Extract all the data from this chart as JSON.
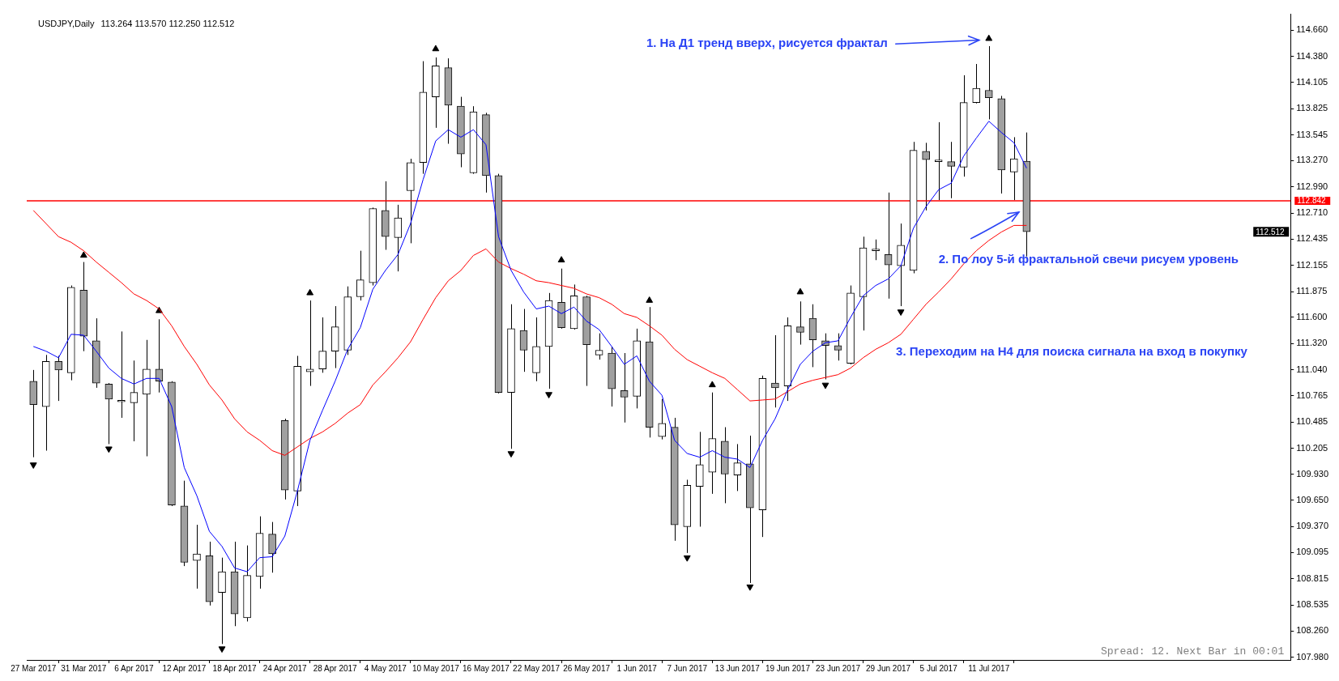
{
  "chart_data": {
    "type": "candlestick",
    "title": "USDJPY,Daily",
    "subtitle": "113.264 113.570 112.250 112.512",
    "categories": [
      "27 Mar 2017",
      null,
      null,
      null,
      "31 Mar 2017",
      null,
      null,
      null,
      "6 Apr 2017",
      null,
      null,
      null,
      "12 Apr 2017",
      null,
      null,
      null,
      "18 Apr 2017",
      null,
      null,
      null,
      "24 Apr 2017",
      null,
      null,
      null,
      "28 Apr 2017",
      null,
      null,
      null,
      "4 May 2017",
      null,
      null,
      null,
      "10 May 2017",
      null,
      null,
      null,
      "16 May 2017",
      null,
      null,
      null,
      "22 May 2017",
      null,
      null,
      null,
      "26 May 2017",
      null,
      null,
      null,
      "1 Jun 2017",
      null,
      null,
      null,
      "7 Jun 2017",
      null,
      null,
      null,
      "13 Jun 2017",
      null,
      null,
      null,
      "19 Jun 2017",
      null,
      null,
      null,
      "23 Jun 2017",
      null,
      null,
      null,
      "29 Jun 2017",
      null,
      null,
      null,
      "5 Jul 2017",
      null,
      null,
      null,
      "11 Jul 2017",
      null,
      null,
      null
    ],
    "ohlc": [
      [
        110.92,
        111.04,
        110.11,
        110.67
      ],
      [
        110.65,
        111.2,
        110.18,
        111.13
      ],
      [
        111.13,
        111.19,
        110.71,
        111.04
      ],
      [
        111.01,
        111.94,
        110.93,
        111.92
      ],
      [
        111.89,
        112.19,
        111.24,
        111.4
      ],
      [
        111.35,
        111.59,
        110.85,
        110.9
      ],
      [
        110.89,
        110.9,
        110.25,
        110.73
      ],
      [
        110.7,
        111.45,
        110.53,
        110.71
      ],
      [
        110.69,
        111.14,
        110.28,
        110.8
      ],
      [
        110.78,
        111.36,
        110.12,
        111.05
      ],
      [
        111.05,
        111.58,
        110.8,
        110.92
      ],
      [
        110.91,
        110.92,
        109.59,
        109.6
      ],
      [
        109.59,
        109.86,
        108.95,
        108.99
      ],
      [
        109.01,
        109.39,
        108.71,
        109.08
      ],
      [
        109.06,
        109.21,
        108.53,
        108.57
      ],
      [
        108.67,
        109.04,
        108.12,
        108.89
      ],
      [
        108.89,
        109.21,
        108.31,
        108.44
      ],
      [
        108.4,
        109.17,
        108.36,
        108.85
      ],
      [
        108.84,
        109.48,
        108.71,
        109.3
      ],
      [
        109.29,
        109.42,
        108.88,
        109.08
      ],
      [
        110.5,
        110.52,
        109.66,
        109.76
      ],
      [
        109.75,
        111.19,
        109.59,
        111.08
      ],
      [
        111.02,
        111.78,
        110.87,
        111.05
      ],
      [
        111.05,
        111.6,
        111.01,
        111.24
      ],
      [
        111.24,
        111.72,
        111.06,
        111.5
      ],
      [
        111.25,
        111.93,
        111.2,
        111.82
      ],
      [
        111.82,
        112.31,
        111.78,
        112.0
      ],
      [
        111.97,
        112.77,
        111.94,
        112.76
      ],
      [
        112.74,
        113.05,
        112.32,
        112.46
      ],
      [
        112.45,
        112.8,
        112.09,
        112.66
      ],
      [
        112.95,
        113.29,
        112.39,
        113.25
      ],
      [
        113.25,
        114.33,
        113.13,
        114.0
      ],
      [
        113.95,
        114.37,
        113.62,
        114.28
      ],
      [
        114.26,
        114.36,
        113.45,
        113.86
      ],
      [
        113.85,
        113.95,
        113.2,
        113.34
      ],
      [
        113.14,
        113.85,
        113.13,
        113.79
      ],
      [
        113.76,
        113.78,
        112.93,
        113.11
      ],
      [
        113.11,
        113.13,
        110.79,
        110.8
      ],
      [
        110.8,
        111.74,
        110.2,
        111.48
      ],
      [
        111.46,
        111.69,
        111.02,
        111.25
      ],
      [
        111.01,
        111.6,
        110.92,
        111.29
      ],
      [
        111.29,
        111.86,
        110.84,
        111.78
      ],
      [
        111.76,
        112.12,
        111.48,
        111.49
      ],
      [
        111.48,
        111.95,
        111.47,
        111.83
      ],
      [
        111.82,
        111.83,
        110.87,
        111.31
      ],
      [
        111.2,
        111.43,
        111.15,
        111.25
      ],
      [
        111.22,
        111.29,
        110.65,
        110.84
      ],
      [
        110.82,
        111.22,
        110.48,
        110.75
      ],
      [
        110.76,
        111.48,
        110.63,
        111.35
      ],
      [
        111.34,
        111.71,
        110.32,
        110.43
      ],
      [
        110.33,
        110.73,
        110.3,
        110.47
      ],
      [
        110.43,
        110.53,
        109.22,
        109.39
      ],
      [
        109.37,
        109.87,
        109.09,
        109.81
      ],
      [
        109.8,
        110.38,
        109.37,
        110.03
      ],
      [
        109.95,
        110.8,
        109.72,
        110.31
      ],
      [
        110.28,
        110.43,
        109.62,
        109.93
      ],
      [
        109.92,
        110.25,
        109.75,
        110.05
      ],
      [
        110.04,
        110.34,
        108.77,
        109.57
      ],
      [
        109.55,
        110.98,
        109.26,
        110.95
      ],
      [
        110.9,
        111.41,
        110.64,
        110.85
      ],
      [
        110.87,
        111.6,
        110.71,
        111.51
      ],
      [
        111.5,
        111.77,
        111.31,
        111.44
      ],
      [
        111.59,
        111.74,
        111.07,
        111.36
      ],
      [
        111.35,
        111.43,
        110.94,
        111.3
      ],
      [
        111.3,
        111.43,
        111.14,
        111.25
      ],
      [
        111.11,
        111.94,
        111.1,
        111.86
      ],
      [
        111.82,
        112.46,
        111.46,
        112.34
      ],
      [
        112.31,
        112.43,
        112.21,
        112.32
      ],
      [
        112.27,
        112.93,
        111.8,
        112.16
      ],
      [
        112.15,
        112.6,
        111.72,
        112.37
      ],
      [
        112.1,
        113.47,
        112.07,
        113.38
      ],
      [
        113.37,
        113.46,
        112.74,
        113.28
      ],
      [
        113.26,
        113.68,
        112.85,
        113.27
      ],
      [
        113.26,
        113.47,
        112.87,
        113.21
      ],
      [
        113.2,
        114.18,
        113.1,
        113.89
      ],
      [
        113.89,
        114.3,
        113.88,
        114.04
      ],
      [
        114.02,
        114.49,
        113.71,
        113.94
      ],
      [
        113.93,
        113.96,
        112.92,
        113.17
      ],
      [
        113.15,
        113.52,
        112.85,
        113.29
      ],
      [
        113.264,
        113.57,
        112.25,
        112.512
      ]
    ],
    "series": [
      {
        "type": "line",
        "color": "#0000ff",
        "values": [
          111.29,
          111.24,
          111.17,
          111.42,
          111.41,
          111.24,
          111.06,
          110.95,
          110.89,
          110.95,
          110.95,
          110.65,
          110.0,
          109.7,
          109.32,
          109.16,
          108.93,
          108.89,
          109.04,
          109.05,
          109.27,
          109.75,
          110.29,
          110.61,
          110.92,
          111.26,
          111.49,
          111.9,
          112.1,
          112.27,
          112.6,
          113.07,
          113.48,
          113.6,
          113.52,
          113.6,
          113.44,
          112.46,
          112.1,
          111.87,
          111.69,
          111.72,
          111.64,
          111.71,
          111.56,
          111.47,
          111.29,
          111.1,
          111.19,
          110.92,
          110.77,
          110.29,
          110.15,
          110.11,
          110.18,
          110.11,
          110.09,
          110.0,
          110.29,
          110.52,
          110.83,
          111.1,
          111.24,
          111.33,
          111.35,
          111.6,
          111.83,
          111.94,
          112.01,
          112.15,
          112.55,
          112.78,
          112.96,
          113.03,
          113.32,
          113.51,
          113.69,
          113.57,
          113.46,
          113.19
        ]
      },
      {
        "type": "line",
        "color": "#ff0000",
        "values": [
          112.74,
          112.6,
          112.46,
          112.4,
          112.31,
          112.19,
          112.08,
          111.97,
          111.85,
          111.78,
          111.69,
          111.51,
          111.29,
          111.1,
          110.88,
          110.72,
          110.52,
          110.38,
          110.29,
          110.18,
          110.13,
          110.22,
          110.31,
          110.38,
          110.47,
          110.58,
          110.67,
          110.88,
          111.02,
          111.17,
          111.34,
          111.58,
          111.81,
          111.99,
          112.1,
          112.26,
          112.33,
          112.19,
          112.12,
          112.06,
          111.99,
          111.97,
          111.94,
          111.91,
          111.85,
          111.81,
          111.74,
          111.64,
          111.6,
          111.51,
          111.41,
          111.26,
          111.15,
          111.08,
          111.01,
          110.95,
          110.83,
          110.71,
          110.72,
          110.73,
          110.81,
          110.89,
          110.93,
          110.96,
          110.99,
          111.06,
          111.17,
          111.26,
          111.33,
          111.42,
          111.58,
          111.74,
          111.87,
          112.01,
          112.17,
          112.31,
          112.42,
          112.51,
          112.58,
          112.58
        ]
      },
      {
        "type": "scatter",
        "color": "#000000",
        "marker": "triangle",
        "values": [
          null,
          null,
          null,
          null,
          112.26,
          null,
          null,
          null,
          null,
          null,
          111.67,
          null,
          null,
          null,
          null,
          null,
          null,
          null,
          null,
          null,
          null,
          null,
          111.86,
          null,
          null,
          null,
          null,
          null,
          null,
          null,
          null,
          null,
          114.46,
          null,
          null,
          null,
          null,
          null,
          null,
          null,
          null,
          null,
          112.21,
          null,
          null,
          null,
          null,
          null,
          null,
          111.78,
          null,
          null,
          null,
          null,
          110.88,
          null,
          null,
          null,
          null,
          null,
          null,
          111.87,
          null,
          null,
          null,
          null,
          null,
          null,
          null,
          null,
          null,
          null,
          null,
          null,
          null,
          null,
          114.57,
          null,
          null,
          null
        ]
      },
      {
        "type": "scatter",
        "color": "#000000",
        "marker": "triangle",
        "values": [
          110.03,
          null,
          null,
          null,
          null,
          null,
          110.2,
          null,
          null,
          null,
          null,
          null,
          null,
          null,
          null,
          108.07,
          null,
          null,
          null,
          null,
          null,
          null,
          null,
          null,
          null,
          null,
          null,
          null,
          null,
          null,
          null,
          null,
          null,
          null,
          null,
          null,
          null,
          null,
          110.15,
          null,
          null,
          110.78,
          null,
          null,
          null,
          null,
          null,
          null,
          null,
          null,
          null,
          null,
          109.04,
          null,
          null,
          null,
          null,
          108.73,
          null,
          null,
          null,
          null,
          null,
          110.88,
          null,
          null,
          null,
          null,
          null,
          111.66,
          null,
          null,
          null,
          null,
          null,
          null,
          null,
          null,
          null,
          null
        ]
      }
    ],
    "ylim": [
      107.95,
      114.83
    ],
    "yticks": [
      {
        "value": 107.98,
        "label": "107.980"
      },
      {
        "value": 108.26,
        "label": "108.260"
      },
      {
        "value": 108.535,
        "label": "108.535"
      },
      {
        "value": 108.815,
        "label": "108.815"
      },
      {
        "value": 109.095,
        "label": "109.095"
      },
      {
        "value": 109.37,
        "label": "109.370"
      },
      {
        "value": 109.65,
        "label": "109.650"
      },
      {
        "value": 109.93,
        "label": "109.930"
      },
      {
        "value": 110.205,
        "label": "110.205"
      },
      {
        "value": 110.485,
        "label": "110.485"
      },
      {
        "value": 110.765,
        "label": "110.765"
      },
      {
        "value": 111.04,
        "label": "111.040"
      },
      {
        "value": 111.32,
        "label": "111.320"
      },
      {
        "value": 111.6,
        "label": "111.600"
      },
      {
        "value": 111.875,
        "label": "111.875"
      },
      {
        "value": 112.155,
        "label": "112.155"
      },
      {
        "value": 112.435,
        "label": "112.435"
      },
      {
        "value": 112.71,
        "label": "112.710"
      },
      {
        "value": 112.99,
        "label": "112.990"
      },
      {
        "value": 113.27,
        "label": "113.270"
      },
      {
        "value": 113.545,
        "label": "113.545"
      },
      {
        "value": 113.825,
        "label": "113.825"
      },
      {
        "value": 114.105,
        "label": "114.105"
      },
      {
        "value": 114.38,
        "label": "114.380"
      },
      {
        "value": 114.66,
        "label": "114.660"
      }
    ],
    "ref_lines": [
      {
        "axis": "y",
        "value": 112.842,
        "label": "112.842",
        "color": "#ff0000"
      }
    ],
    "annotations": [
      "1. На Д1 тренд вверх, рисуется фрактал",
      "2. По лоу 5-й фрактальной свечи рисуем уровень",
      "3. Переходим на H4 для поиска сигнала на вход в покупку",
      "Spread: 12. Next Bar in 00:01",
      "112.512"
    ]
  }
}
